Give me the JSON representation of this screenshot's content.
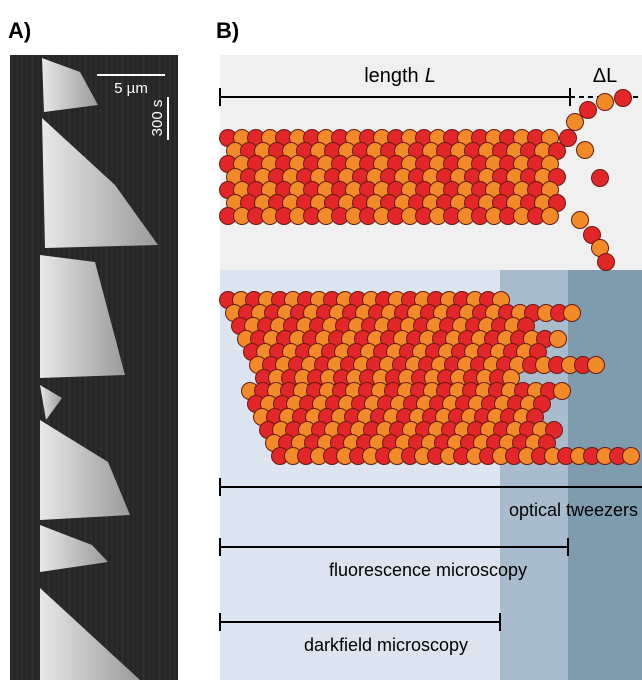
{
  "panel_a": {
    "label": "A)",
    "scale_x": "5 µm",
    "scale_t": "300 s"
  },
  "panel_b": {
    "label": "B)",
    "length_label": "length",
    "length_symbol": "L",
    "delta_label": "ΔL",
    "methods": [
      "optical tweezers",
      "fluorescence microscopy",
      "darkfield microscopy"
    ]
  }
}
